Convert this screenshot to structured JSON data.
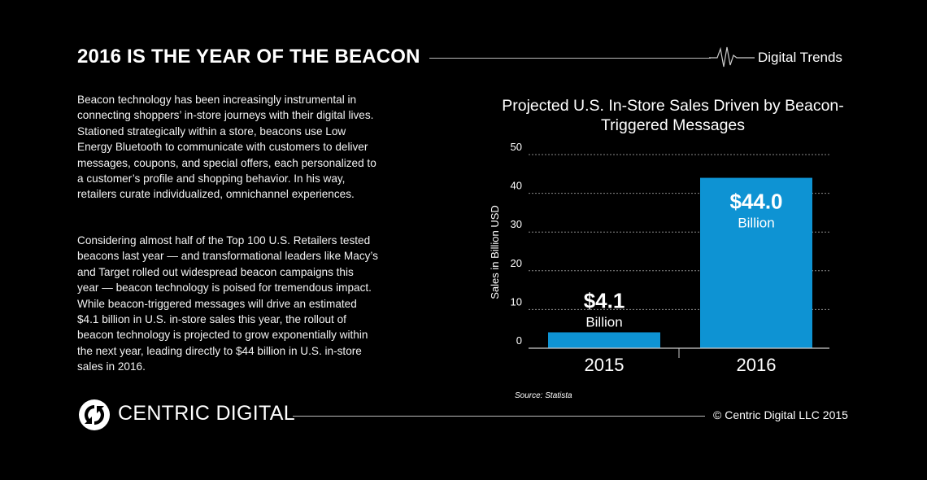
{
  "header": {
    "title": "2016 IS THE YEAR OF THE BEACON",
    "brand": "Digital Trends",
    "brand_icon": "heartbeat-pulse-icon"
  },
  "body": {
    "paragraph1": "Beacon technology has been increasingly instrumental in connecting shoppers’ in-store journeys with their digital lives. Stationed strategically within a store, beacons use Low Energy Bluetooth to communicate with customers to deliver messages, coupons, and special offers, each personalized to a customer’s profile and shopping behavior. In his way, retailers curate individualized, omnichannel experiences.",
    "paragraph2": "Considering almost half of the Top 100 U.S. Retailers tested beacons last year — and transformational leaders like Macy’s and Target rolled out widespread beacon campaigns this year — beacon technology is poised for tremendous impact. While beacon-triggered messages will drive an estimated $4.1 billion in U.S. in-store sales this year, the rollout of beacon technology is projected to grow exponentially within the next year, leading directly to $44 billion in U.S. in-store sales in 2016."
  },
  "chart_data": {
    "type": "bar",
    "title": "Projected U.S. In-Store Sales Driven by Beacon-Triggered Messages",
    "categories": [
      "2015",
      "2016"
    ],
    "values": [
      4.1,
      44.0
    ],
    "data_labels": [
      {
        "value": "$4.1",
        "unit": "Billion"
      },
      {
        "value": "$44.0",
        "unit": "Billion"
      }
    ],
    "xlabel": "",
    "ylabel": "Sales in Billion USD",
    "ylim": [
      0,
      50
    ],
    "yticks": [
      "0",
      "10",
      "20",
      "30",
      "40",
      "50"
    ],
    "grid": true,
    "bar_color": "#0e93d3",
    "source": "Source: Statista"
  },
  "footer": {
    "logo_text": "CENTRIC DIGITAL",
    "logo_icon": "circular-arrows-logo-icon",
    "copyright": "© Centric Digital LLC 2015"
  }
}
